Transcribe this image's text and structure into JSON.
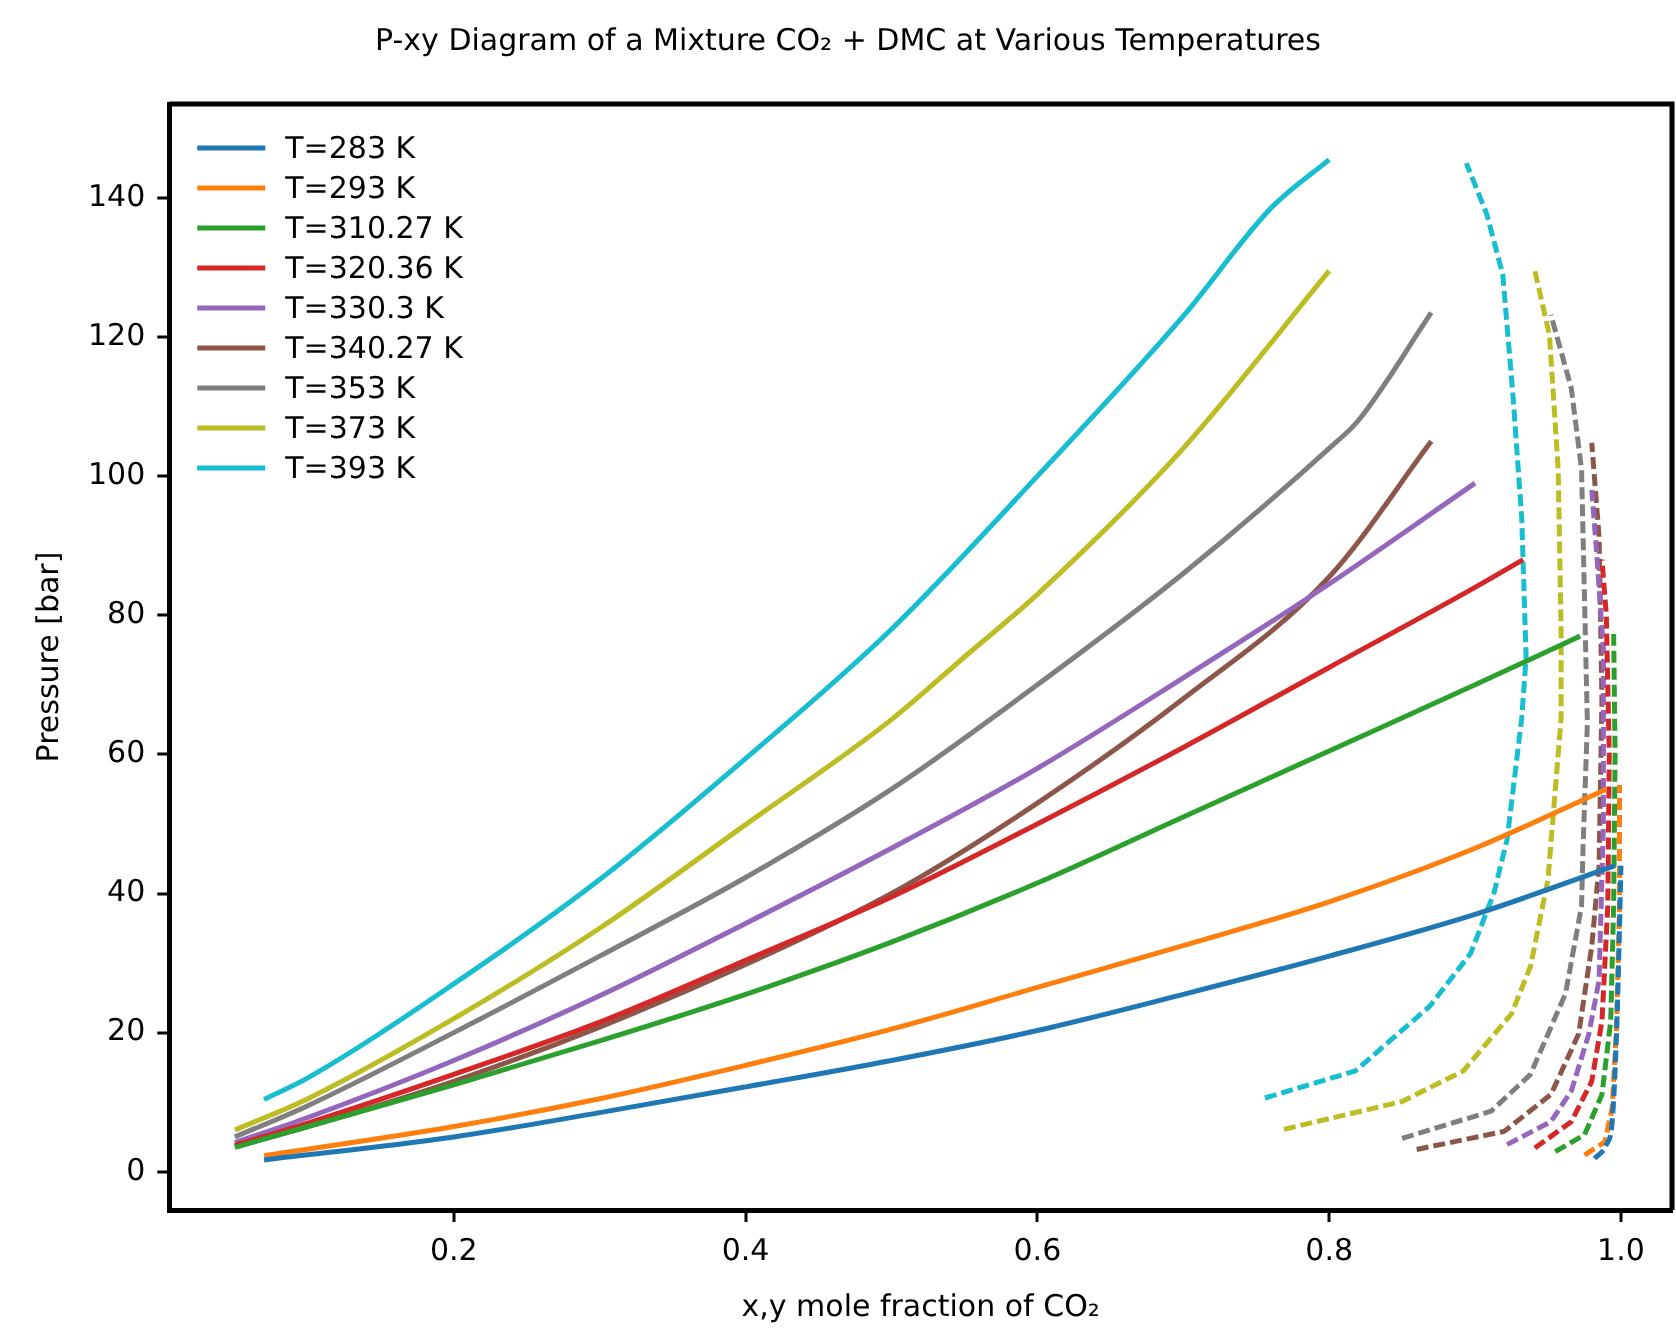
{
  "chart_data": {
    "type": "line",
    "title": "P-xy Diagram of a Mixture CO₂ + DMC at Various Temperatures",
    "xlabel": "x,y mole fraction of CO₂",
    "ylabel": "Pressure [bar]",
    "xlim": [
      0.005,
      1.035
    ],
    "ylim": [
      -5.5,
      153.5
    ],
    "xticks": [
      0.2,
      0.4,
      0.6,
      0.8,
      {
        "value": 1,
        "label": "1.0"
      }
    ],
    "yticks": [
      0,
      20,
      40,
      60,
      80,
      100,
      120,
      140
    ],
    "grid": false,
    "legend": "top left",
    "marker": "none",
    "line_style": "solid",
    "series": [
      {
        "name": "T=283 K",
        "color": "#1f77b4",
        "x": [
          0.07,
          0.2,
          0.3,
          0.4,
          0.5,
          0.6,
          0.7,
          0.8,
          0.9,
          0.996
        ],
        "values": [
          1.7,
          5,
          8.5,
          12.2,
          16,
          20.3,
          25.5,
          31,
          37,
          44
        ]
      },
      {
        "name": "T=293 K",
        "color": "#ff7f0e",
        "x": [
          0.07,
          0.2,
          0.3,
          0.4,
          0.5,
          0.6,
          0.7,
          0.8,
          0.9,
          0.99
        ],
        "values": [
          2.3,
          6.5,
          10.5,
          15.3,
          20.5,
          26.5,
          32.5,
          38.8,
          46.5,
          55
        ]
      },
      {
        "name": "T=310.27 K",
        "color": "#2ca02c",
        "x": [
          0.05,
          0.1,
          0.2,
          0.3,
          0.4,
          0.5,
          0.6,
          0.7,
          0.8,
          0.9,
          0.972
        ],
        "values": [
          3.5,
          6.5,
          12.5,
          18.8,
          25.5,
          33,
          41.5,
          51,
          60.5,
          70,
          77
        ]
      },
      {
        "name": "T=320.36 K",
        "color": "#d62728",
        "x": [
          0.05,
          0.1,
          0.2,
          0.3,
          0.4,
          0.5,
          0.6,
          0.7,
          0.8,
          0.9,
          0.933
        ],
        "values": [
          3.8,
          7,
          14,
          21.5,
          30.4,
          39.5,
          50,
          61,
          72.5,
          84,
          88
        ]
      },
      {
        "name": "T=330.3 K",
        "color": "#9467bd",
        "x": [
          0.05,
          0.1,
          0.2,
          0.3,
          0.4,
          0.5,
          0.6,
          0.7,
          0.8,
          0.9
        ],
        "values": [
          4.2,
          7.8,
          16,
          25.3,
          35.7,
          46.5,
          58,
          71,
          84.5,
          99
        ]
      },
      {
        "name": "T=340.27 K",
        "color": "#8c564b",
        "x": [
          0.05,
          0.1,
          0.2,
          0.3,
          0.4,
          0.5,
          0.6,
          0.7,
          0.8,
          0.87
        ],
        "values": [
          3.6,
          6.5,
          13,
          20.8,
          29.8,
          40,
          53,
          68,
          85.5,
          105
        ]
      },
      {
        "name": "T=353 K",
        "color": "#7f7f7f",
        "x": [
          0.05,
          0.1,
          0.2,
          0.3,
          0.4,
          0.5,
          0.6,
          0.7,
          0.8,
          0.82,
          0.87
        ],
        "values": [
          5,
          9.5,
          20,
          31,
          42.3,
          55,
          70,
          86,
          104,
          108,
          123.5
        ]
      },
      {
        "name": "T=373 K",
        "color": "#bcbd22",
        "x": [
          0.05,
          0.1,
          0.2,
          0.3,
          0.4,
          0.5,
          0.55,
          0.6,
          0.7,
          0.8
        ],
        "values": [
          6,
          10.5,
          22,
          35,
          49.9,
          65,
          74,
          83,
          104,
          129.5
        ]
      },
      {
        "name": "T=393 K",
        "color": "#17becf",
        "x": [
          0.07,
          0.1,
          0.2,
          0.3,
          0.4,
          0.5,
          0.6,
          0.7,
          0.76,
          0.8
        ],
        "values": [
          10.4,
          13.5,
          27,
          42,
          59.4,
          78,
          100,
          123,
          138.5,
          145.5
        ]
      },
      {
        "color": "#1f77b4",
        "line_style": "dashed",
        "x": [
          0.982,
          0.99,
          0.994,
          0.997,
          0.999,
          1.0
        ],
        "values": [
          1.9,
          3.9,
          7.2,
          20,
          35,
          44
        ]
      },
      {
        "color": "#ff7f0e",
        "line_style": "dashed",
        "x": [
          0.975,
          0.989,
          0.994,
          0.997,
          0.999,
          0.999
        ],
        "values": [
          2.4,
          4.3,
          9.2,
          20.8,
          38.2,
          55.6
        ]
      },
      {
        "color": "#2ca02c",
        "line_style": "dashed",
        "x": [
          0.955,
          0.975,
          0.987,
          0.993,
          0.995,
          0.996,
          0.995
        ],
        "values": [
          2.9,
          5.3,
          11.1,
          21.7,
          38.2,
          60,
          77.3
        ]
      },
      {
        "color": "#d62728",
        "line_style": "dashed",
        "x": [
          0.941,
          0.966,
          0.98,
          0.987,
          0.991,
          0.992,
          0.99,
          0.987
        ],
        "values": [
          3.4,
          7.2,
          13,
          21.7,
          38.2,
          60,
          80,
          88
        ]
      },
      {
        "color": "#9467bd",
        "line_style": "dashed",
        "x": [
          0.922,
          0.952,
          0.966,
          0.978,
          0.985,
          0.988,
          0.988,
          0.983,
          0.98
        ],
        "values": [
          3.9,
          7.2,
          11.6,
          19.8,
          27.5,
          50,
          75,
          90,
          98
        ]
      },
      {
        "color": "#8c564b",
        "line_style": "dashed",
        "x": [
          0.86,
          0.92,
          0.952,
          0.971,
          0.98,
          0.985,
          0.987,
          0.985,
          0.98
        ],
        "values": [
          3.2,
          5.8,
          11.1,
          19.8,
          32.4,
          44,
          68,
          91.3,
          104.8
        ]
      },
      {
        "color": "#7f7f7f",
        "line_style": "dashed",
        "x": [
          0.85,
          0.911,
          0.938,
          0.962,
          0.973,
          0.974,
          0.977,
          0.973,
          0.966,
          0.952
        ],
        "values": [
          4.8,
          8.7,
          14,
          25.6,
          38.2,
          46.4,
          64.5,
          101,
          112.6,
          123.2
        ]
      },
      {
        "color": "#bcbd22",
        "line_style": "dashed",
        "x": [
          0.769,
          0.85,
          0.892,
          0.925,
          0.938,
          0.95,
          0.959,
          0.959,
          0.957,
          0.951,
          0.941
        ],
        "values": [
          6.1,
          10.1,
          14.5,
          22.7,
          29.5,
          42,
          65.2,
          77.8,
          101,
          120.3,
          129.5
        ]
      },
      {
        "color": "#17becf",
        "line_style": "dashed",
        "x": [
          0.756,
          0.818,
          0.869,
          0.897,
          0.913,
          0.922,
          0.932,
          0.935,
          0.932,
          0.926,
          0.919,
          0.908,
          0.894
        ],
        "values": [
          10.6,
          14.5,
          23.8,
          31.4,
          40.1,
          47.8,
          65.2,
          74,
          94,
          111.6,
          129,
          137.7,
          145
        ]
      }
    ]
  }
}
